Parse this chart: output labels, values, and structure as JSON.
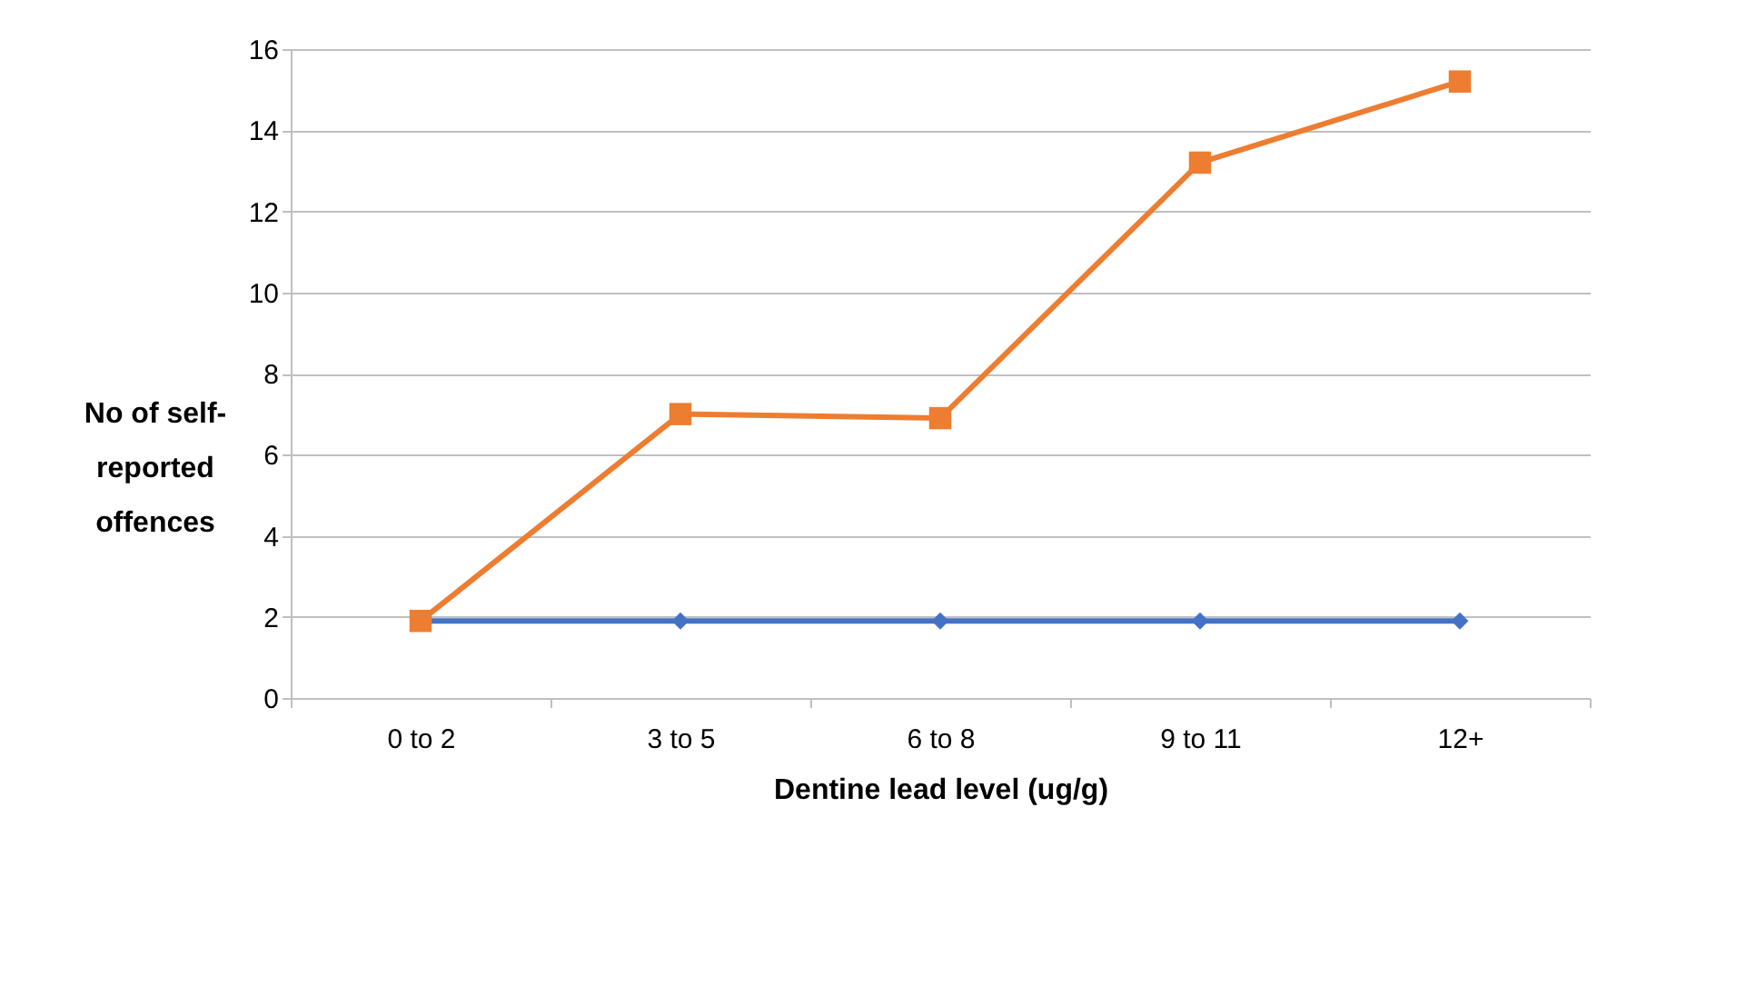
{
  "chart_data": {
    "type": "line",
    "xlabel": "Dentine lead level (ug/g)",
    "ylabel": "No of self-reported offences",
    "categories": [
      "0 to 2",
      "3 to 5",
      "6 to 8",
      "9 to 11",
      "12+"
    ],
    "series": [
      {
        "color": "#4472c4",
        "marker": "diamond",
        "values": [
          1.9,
          1.9,
          1.9,
          1.9,
          1.9
        ]
      },
      {
        "color": "#ed7d31",
        "marker": "square",
        "values": [
          1.9,
          7.0,
          6.9,
          13.2,
          15.2
        ]
      }
    ],
    "ylim": [
      0,
      16
    ],
    "yticks": [
      0,
      2,
      4,
      6,
      8,
      10,
      12,
      14,
      16
    ],
    "grid": "y"
  }
}
